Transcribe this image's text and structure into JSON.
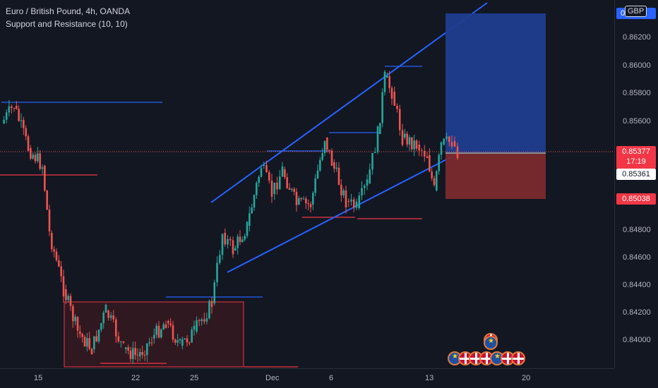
{
  "legend": {
    "symbol": "Euro / British Pound, 4h, OANDA",
    "indicator": "Support and Resistance (10, 10)"
  },
  "price_axis": {
    "currency": "GBP",
    "ticks": [
      "0.86200",
      "0.86000",
      "0.85800",
      "0.85600",
      "0.84800",
      "0.84600",
      "0.84400",
      "0.84200",
      "0.84000"
    ],
    "top_partial": "0.864",
    "current_price": "0.85377",
    "countdown": "17:19",
    "crosshair_price": "0.85361",
    "stop_price": "0.85038"
  },
  "time_axis": {
    "labels": [
      "15",
      "22",
      "25",
      "Dec",
      "6",
      "13",
      "20"
    ]
  },
  "colors": {
    "up": "#26a69a",
    "down": "#ef5350",
    "trend": "#2962ff",
    "profit_zone": "#1e3d8f",
    "loss_zone": "#7a2a2e",
    "support_box": "#4a1f24",
    "resistance_line_red": "#f23645"
  }
}
